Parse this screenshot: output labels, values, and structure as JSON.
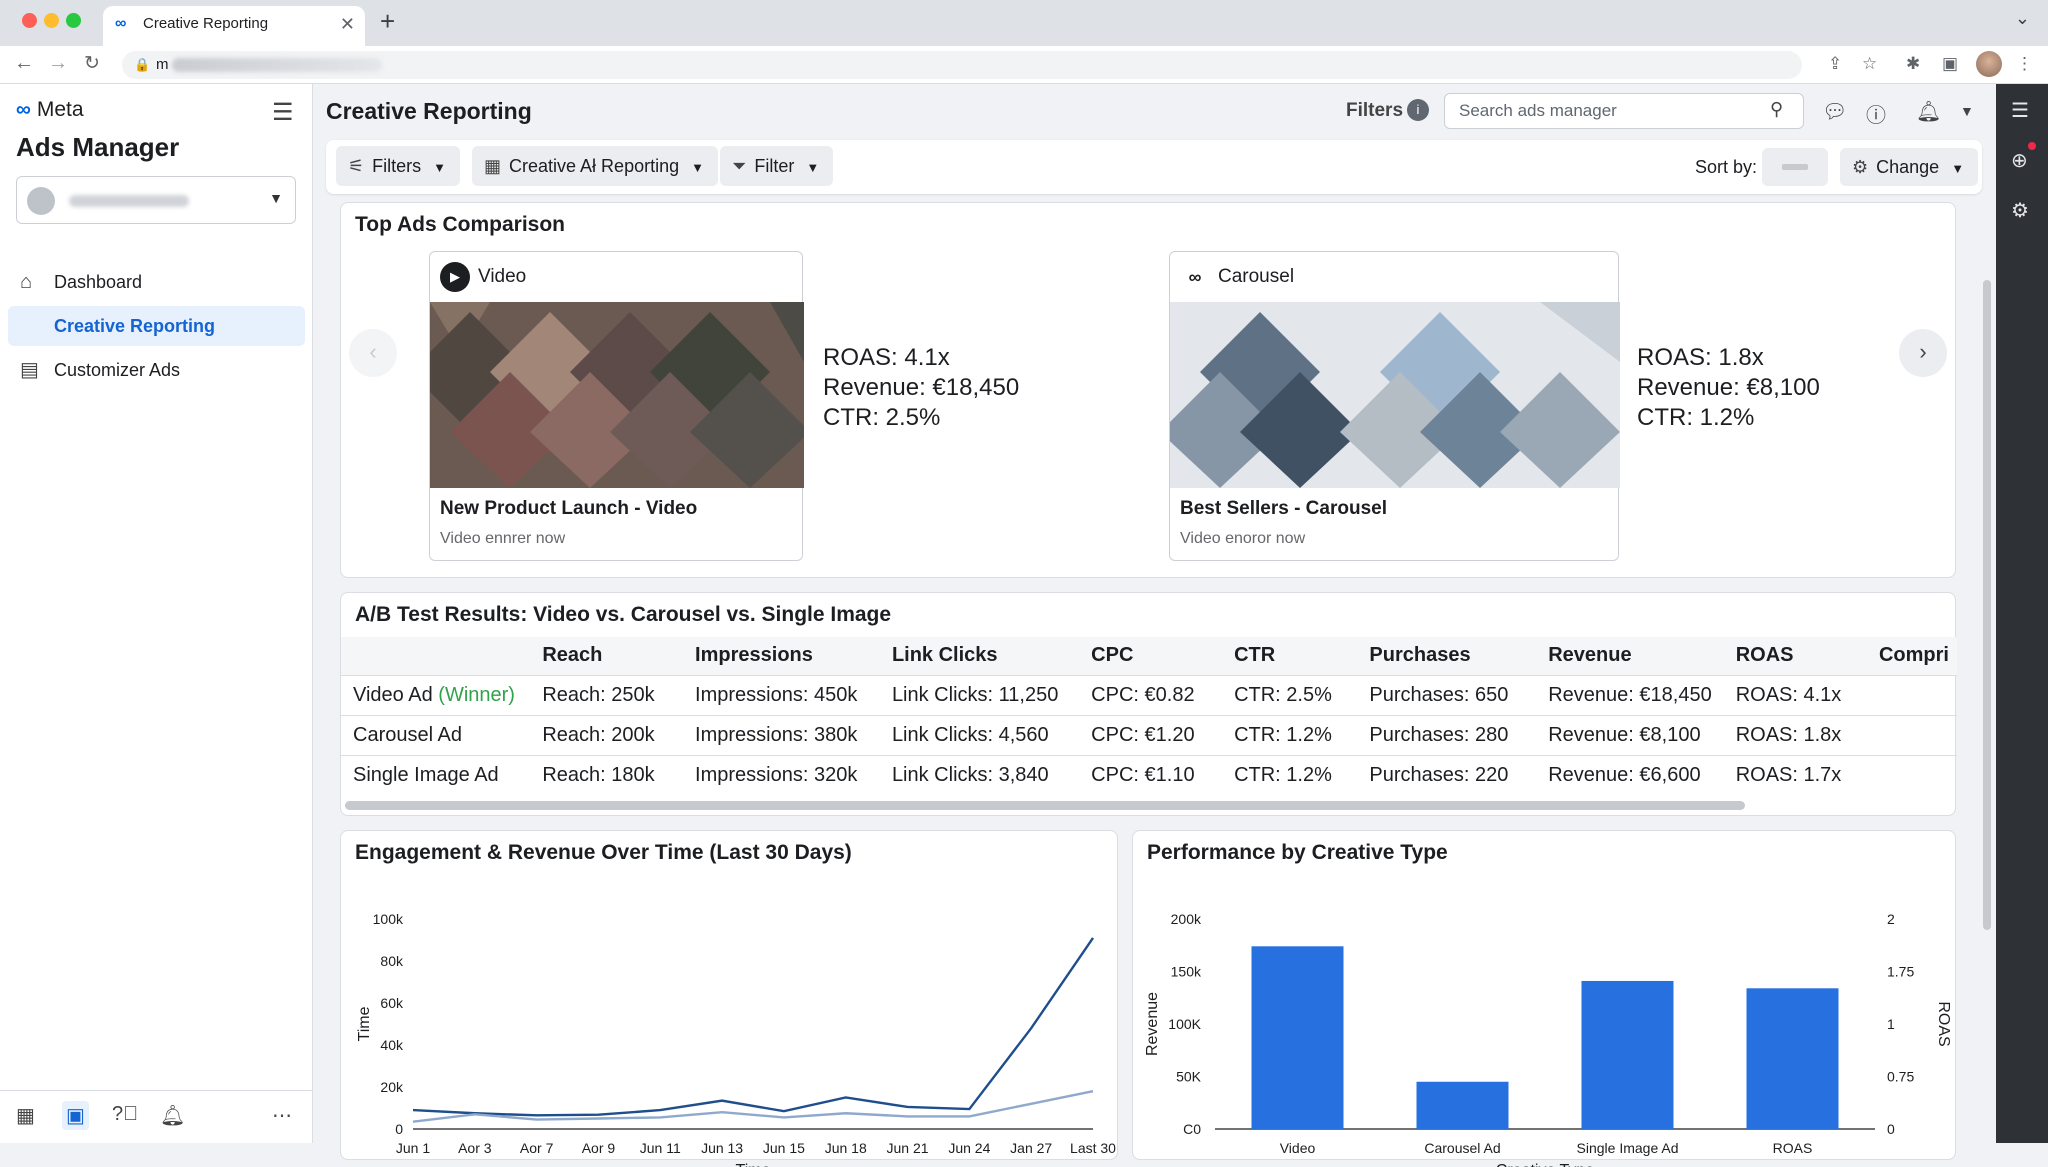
{
  "browser": {
    "tab_title": "Creative Reporting",
    "url_prefix": "m"
  },
  "sidebar": {
    "brand": "Meta",
    "product": "Ads Manager",
    "nav": [
      {
        "label": "Dashboard",
        "icon": "home-icon",
        "active": false
      },
      {
        "label": "Creative Reporting",
        "icon": "",
        "active": true
      },
      {
        "label": "Customizer Ads",
        "icon": "briefcase-icon",
        "active": false
      }
    ]
  },
  "header": {
    "title": "Creative Reporting",
    "filters_label": "Filters",
    "search_placeholder": "Search ads manager"
  },
  "toolbar": {
    "filters_btn": "Filters",
    "report_btn": "Creative Ał Reporting",
    "filter_btn": "Filter",
    "sort_label": "Sort by:",
    "change_btn": "Change"
  },
  "top_ads": {
    "title": "Top Ads Comparison",
    "ads": [
      {
        "type": "Video",
        "name": "New Product Launch - Video",
        "sub": "Video ennrer now",
        "roas": "ROAS: 4.1x",
        "revenue": "Revenue: €18,450",
        "ctr": "CTR: 2.5%"
      },
      {
        "type": "Carousel",
        "name": "Best Sellers - Carousel",
        "sub": "Video enoror now",
        "roas": "ROAS: 1.8x",
        "revenue": "Revenue: €8,100",
        "ctr": "CTR: 1.2%"
      }
    ]
  },
  "ab_test": {
    "title": "A/B Test Results: Video vs. Carousel vs. Single Image",
    "columns": [
      "",
      "Reach",
      "Impressions",
      "Link Clicks",
      "CPC",
      "CTR",
      "Purchases",
      "Revenue",
      "ROAS",
      "Compri"
    ],
    "rows": [
      {
        "name": "Video Ad",
        "tag": "(Winner)",
        "cells": [
          "Reach: 250k",
          "Impressions: 450k",
          "Link Clicks: 11,250",
          "CPC: €0.82",
          "CTR: 2.5%",
          "Purchases: 650",
          "Revenue: €18,450",
          "ROAS: 4.1x",
          ""
        ]
      },
      {
        "name": "Carousel Ad",
        "tag": "",
        "cells": [
          "Reach: 200k",
          "Impressions: 380k",
          "Link Clicks: 4,560",
          "CPC: €1.20",
          "CTR: 1.2%",
          "Purchases: 280",
          "Revenue: €8,100",
          "ROAS: 1.8x",
          ""
        ]
      },
      {
        "name": "Single Image Ad",
        "tag": "",
        "cells": [
          "Reach: 180k",
          "Impressions: 320k",
          "Link Clicks: 3,840",
          "CPC: €1.10",
          "CTR: 1.2%",
          "Purchases: 220",
          "Revenue: €6,600",
          "ROAS: 1.7x",
          ""
        ]
      }
    ]
  },
  "chart_data": [
    {
      "type": "line",
      "title": "Engagement & Revenue Over Time (Last 30 Days)",
      "xlabel": "Time",
      "ylabel": "Time",
      "categories": [
        "Jun 1",
        "Aor 3",
        "Aor 7",
        "Aor 9",
        "Jun 11",
        "Jun 13",
        "Jun 15",
        "Jun 18",
        "Jun 21",
        "Jun 24",
        "Jan 27",
        "Last 30"
      ],
      "yticks": [
        "0",
        "20k",
        "40k",
        "60k",
        "80k",
        "100k"
      ],
      "ylim": [
        0,
        100000
      ],
      "series": [
        {
          "color": "#1f4e8c",
          "values": [
            9000,
            7500,
            6500,
            6800,
            9000,
            13500,
            8500,
            15000,
            10500,
            9500,
            48000,
            91000
          ]
        },
        {
          "color": "#8ea9cc",
          "values": [
            3500,
            7000,
            4500,
            5000,
            5500,
            8000,
            5500,
            7500,
            6000,
            6000,
            12000,
            18000
          ]
        }
      ]
    },
    {
      "type": "bar",
      "title": "Performance by Creative Type",
      "xlabel": "Creative Type",
      "ylabel": "Revenue",
      "y2label": "ROAS",
      "categories": [
        "Video",
        "Carousel Ad",
        "Single Image Ad",
        "ROAS"
      ],
      "values": [
        174000,
        45000,
        141000,
        134000
      ],
      "color": "#2670e0",
      "ylim": [
        0,
        200000
      ],
      "yticks": [
        "C0",
        "50K",
        "100K",
        "150k",
        "200k"
      ],
      "y2ticks": [
        "0",
        "0.75",
        "1",
        "1.75",
        "2"
      ]
    }
  ]
}
